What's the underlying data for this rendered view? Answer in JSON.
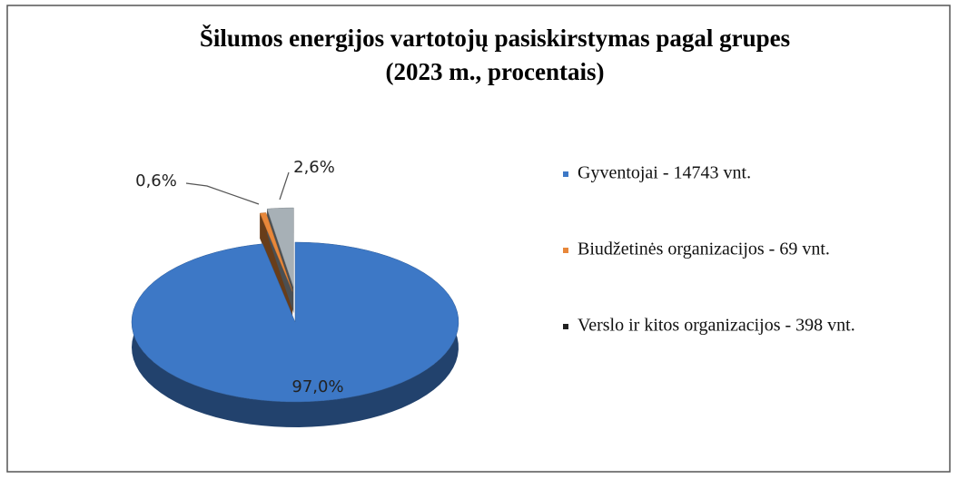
{
  "chart_data": {
    "type": "pie",
    "title": "Šilumos energijos vartotojų pasiskirstymas pagal grupes",
    "subtitle": "(2023 m., procentais)",
    "categories": [
      "Gyventojai - 14743 vnt.",
      "Biudžetinės organizacijos -  69 vnt.",
      "Verslo ir kitos organizacijos - 398 vnt."
    ],
    "values": [
      97.0,
      0.6,
      2.6
    ],
    "value_labels": [
      "97,0%",
      "0,6%",
      "2,6%"
    ],
    "colors": [
      "#3d78c6",
      "#e8873a",
      "#a7b0b6"
    ],
    "legend": "right"
  }
}
